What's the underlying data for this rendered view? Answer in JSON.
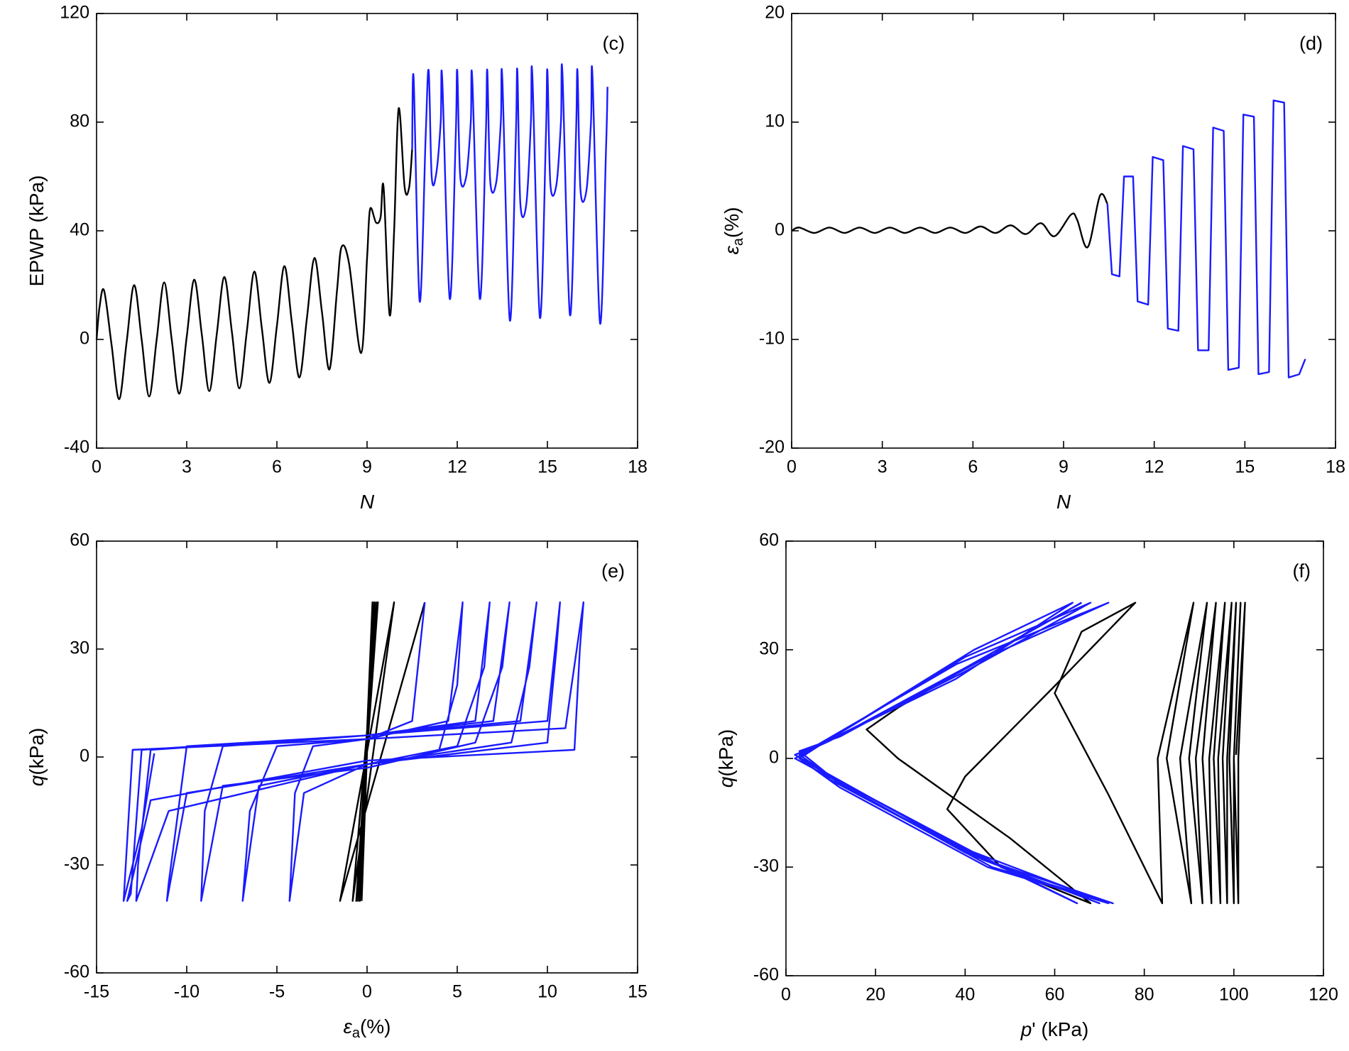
{
  "chart_data": [
    {
      "type": "line",
      "annotation": "(c)",
      "x_label": [
        "N"
      ],
      "x_label_style": [
        "italic"
      ],
      "y_label": [
        "EPWP (kPa)"
      ],
      "y_label_style": [
        "normal"
      ],
      "xlim": [
        0,
        18
      ],
      "ylim": [
        -40,
        120
      ],
      "xticks": [
        0,
        3,
        6,
        9,
        12,
        15,
        18
      ],
      "yticks": [
        -40,
        0,
        40,
        80,
        120
      ],
      "series": [
        {
          "color": "#000000",
          "smooth": true,
          "x": [
            0,
            0.1,
            0.25,
            0.5,
            0.75,
            1.0,
            1.25,
            1.5,
            1.75,
            2.0,
            2.25,
            2.5,
            2.75,
            3.0,
            3.25,
            3.5,
            3.75,
            4.0,
            4.25,
            4.5,
            4.75,
            5.0,
            5.25,
            5.5,
            5.75,
            6.0,
            6.25,
            6.5,
            6.75,
            7.0,
            7.25,
            7.5,
            7.75,
            8.0,
            8.15,
            8.4,
            8.8,
            9.0,
            9.1,
            9.3,
            9.45,
            9.55,
            9.75,
            9.9,
            10.05,
            10.25,
            10.4,
            10.5
          ],
          "values": [
            0,
            12,
            18,
            -2,
            -22,
            -1,
            20,
            0,
            -21,
            0,
            21,
            0,
            -20,
            1,
            22,
            2,
            -19,
            2,
            23,
            3,
            -18,
            3,
            25,
            4,
            -16,
            5,
            27,
            6,
            -14,
            8,
            30,
            10,
            -11,
            18,
            34,
            28,
            -5,
            30,
            48,
            43,
            45,
            56,
            9,
            40,
            85,
            56,
            56,
            70
          ]
        },
        {
          "color": "#1a1aff",
          "smooth": true,
          "x": [
            10.5,
            10.55,
            10.75,
            10.95,
            11.05,
            11.15,
            11.3,
            11.45,
            11.5,
            11.75,
            11.95,
            12.0,
            12.1,
            12.3,
            12.45,
            12.5,
            12.75,
            12.95,
            13.0,
            13.1,
            13.3,
            13.45,
            13.5,
            13.75,
            13.95,
            14.0,
            14.1,
            14.3,
            14.45,
            14.5,
            14.75,
            14.95,
            15.0,
            15.1,
            15.3,
            15.45,
            15.5,
            15.75,
            15.95,
            16.0,
            16.1,
            16.3,
            16.45,
            16.5,
            16.75,
            16.95,
            17.0
          ],
          "values": [
            70,
            96,
            14,
            75,
            99,
            60,
            61,
            80,
            96,
            15,
            75,
            99,
            60,
            60,
            80,
            96,
            15,
            75,
            99,
            58,
            58,
            80,
            96,
            7,
            75,
            99,
            50,
            50,
            80,
            97,
            8,
            75,
            99,
            57,
            57,
            80,
            98,
            9,
            75,
            99,
            55,
            55,
            80,
            97,
            6,
            70,
            93
          ]
        }
      ]
    },
    {
      "type": "line",
      "annotation": "(d)",
      "x_label": [
        "N"
      ],
      "x_label_style": [
        "italic"
      ],
      "y_label": [
        "ε",
        "a",
        "(%)"
      ],
      "y_label_style": [
        "italic",
        "sub",
        "normal"
      ],
      "xlim": [
        0,
        18
      ],
      "ylim": [
        -20,
        20
      ],
      "xticks": [
        0,
        3,
        6,
        9,
        12,
        15,
        18
      ],
      "yticks": [
        -20,
        -10,
        0,
        10,
        20
      ],
      "series": [
        {
          "color": "#000000",
          "smooth": true,
          "x": [
            0,
            0.25,
            0.75,
            1.25,
            1.75,
            2.25,
            2.75,
            3.25,
            3.75,
            4.25,
            4.75,
            5.25,
            5.75,
            6.25,
            6.75,
            7.25,
            7.75,
            8.25,
            8.7,
            9.25,
            9.45,
            9.8,
            10.2,
            10.45
          ],
          "values": [
            0,
            0.3,
            -0.2,
            0.3,
            -0.2,
            0.3,
            -0.2,
            0.3,
            -0.2,
            0.3,
            -0.2,
            0.3,
            -0.2,
            0.4,
            -0.2,
            0.5,
            -0.3,
            0.7,
            -0.5,
            1.5,
            1.0,
            -1.5,
            3.2,
            2.5
          ]
        },
        {
          "color": "#1a1aff",
          "smooth": false,
          "x": [
            10.45,
            10.6,
            10.85,
            11.0,
            11.3,
            11.45,
            11.8,
            11.95,
            12.3,
            12.45,
            12.8,
            12.95,
            13.3,
            13.45,
            13.8,
            13.95,
            14.3,
            14.45,
            14.8,
            14.95,
            15.3,
            15.45,
            15.8,
            15.95,
            16.3,
            16.45,
            16.8,
            17.0
          ],
          "values": [
            2.5,
            -4,
            -4.2,
            5,
            5,
            -6.5,
            -6.8,
            6.8,
            6.5,
            -9,
            -9.2,
            7.8,
            7.5,
            -11,
            -11,
            9.5,
            9.2,
            -12.8,
            -12.6,
            10.7,
            10.5,
            -13.2,
            -13,
            12,
            11.8,
            -13.5,
            -13.2,
            -11.8
          ]
        }
      ]
    },
    {
      "type": "line",
      "annotation": "(e)",
      "x_label": [
        "ε",
        "a",
        "(%)"
      ],
      "x_label_style": [
        "italic",
        "sub",
        "normal"
      ],
      "y_label": [
        "q",
        "(kPa)"
      ],
      "y_label_style": [
        "italic",
        "normal"
      ],
      "xlim": [
        -15,
        15
      ],
      "ylim": [
        -60,
        60
      ],
      "xticks": [
        -15,
        -10,
        -5,
        0,
        5,
        10,
        15
      ],
      "yticks": [
        -60,
        -30,
        0,
        30,
        60
      ],
      "series": [
        {
          "color": "#000000",
          "smooth": false,
          "x": [
            -0.3,
            0.3,
            -0.4,
            0.4,
            -0.5,
            0.5,
            -0.6,
            0.6,
            -0.8,
            1.5,
            -1.5,
            3.2
          ],
          "values": [
            -40,
            43,
            -40,
            43,
            -40,
            43,
            -40,
            43,
            -40,
            43,
            -40,
            43
          ]
        },
        {
          "color": "#1a1aff",
          "smooth": false,
          "x": [
            3.2,
            2.5,
            0,
            -3,
            -4,
            -4.3,
            -3.5,
            0,
            4,
            5,
            5.3,
            4.5,
            0,
            -5,
            -6.5,
            -6.9,
            -6,
            0,
            5,
            6.5,
            6.8,
            6,
            0,
            -8,
            -9,
            -9.2,
            -8,
            0,
            6,
            7.5,
            7.9,
            7,
            0,
            -10,
            -11,
            -11.1,
            -10,
            0,
            8,
            9,
            9.4,
            8.5,
            0,
            -12,
            -12.7,
            -12.8,
            -11,
            0,
            10,
            10.5,
            10.7,
            10,
            0,
            -12.5,
            -13.1,
            -13.3,
            -12,
            0,
            11.5,
            11.8,
            12.0,
            11,
            0,
            -13,
            -13.5,
            -12.5,
            -11.8
          ],
          "values": [
            43,
            10,
            5,
            3,
            -10,
            -40,
            -10,
            -2,
            2,
            20,
            43,
            10,
            5,
            3,
            -15,
            -40,
            -8,
            -2,
            3,
            25,
            43,
            10,
            6,
            3,
            -15,
            -40,
            -8,
            -3,
            4,
            25,
            43,
            10,
            6,
            3,
            -35,
            -40,
            -10,
            -2,
            4,
            25,
            43,
            10,
            6,
            2,
            -30,
            -40,
            -15,
            -2,
            4,
            30,
            43,
            10,
            6,
            2,
            -38,
            -40,
            -12,
            -1,
            2,
            30,
            43,
            8,
            5,
            2,
            -40,
            -20,
            1
          ]
        }
      ]
    },
    {
      "type": "line",
      "annotation": "(f)",
      "x_label": [
        "p",
        "' (kPa)"
      ],
      "x_label_style": [
        "italic",
        "normal"
      ],
      "y_label": [
        "q",
        "(kPa)"
      ],
      "y_label_style": [
        "italic",
        "normal"
      ],
      "xlim": [
        0,
        120
      ],
      "ylim": [
        -60,
        60
      ],
      "xticks": [
        0,
        20,
        40,
        60,
        80,
        100,
        120
      ],
      "yticks": [
        -60,
        -30,
        0,
        30,
        60
      ],
      "series": [
        {
          "color": "#000000",
          "smooth": false,
          "x": [
            100.5,
            102.5,
            101,
            101,
            100,
            101.5,
            100,
            100,
            99,
            100.5,
            98.5,
            98.5,
            97.5,
            99.5,
            96.5,
            97,
            95.5,
            98,
            94.5,
            95,
            93,
            96,
            91.5,
            93,
            90,
            94,
            88,
            90.5,
            85,
            91,
            83,
            84,
            72,
            60,
            66,
            78,
            60,
            40,
            36,
            48,
            68,
            50,
            25,
            18,
            25,
            50,
            66
          ],
          "values": [
            1,
            43,
            0,
            -40,
            0,
            43,
            0,
            -40,
            0,
            43,
            0,
            -40,
            0,
            43,
            0,
            -40,
            0,
            43,
            0,
            -40,
            0,
            43,
            0,
            -40,
            0,
            43,
            0,
            -40,
            0,
            43,
            0,
            -40,
            -10,
            18,
            35,
            43,
            20,
            -5,
            -14,
            -30,
            -40,
            -22,
            0,
            8,
            14,
            32,
            43
          ]
        },
        {
          "color": "#1a1aff",
          "smooth": false,
          "x": [
            66,
            40,
            10,
            3,
            10,
            40,
            72,
            45,
            12,
            3,
            8,
            40,
            68,
            40,
            8,
            2,
            8,
            40,
            70,
            44,
            10,
            3,
            6,
            38,
            72,
            45,
            12,
            3,
            9,
            38,
            65,
            42,
            10,
            2,
            8,
            42,
            64,
            38,
            8,
            3,
            10,
            42,
            73,
            46,
            12,
            4
          ],
          "values": [
            43,
            25,
            5,
            1,
            -5,
            -25,
            -40,
            -30,
            -8,
            0,
            4,
            28,
            43,
            24,
            4,
            0,
            -4,
            -26,
            -40,
            -28,
            -6,
            0,
            3,
            26,
            43,
            28,
            6,
            2,
            -4,
            -24,
            -40,
            -26,
            -5,
            1,
            4,
            30,
            43,
            22,
            4,
            0,
            -6,
            -27,
            -40,
            -30,
            -7,
            0
          ]
        }
      ]
    }
  ]
}
